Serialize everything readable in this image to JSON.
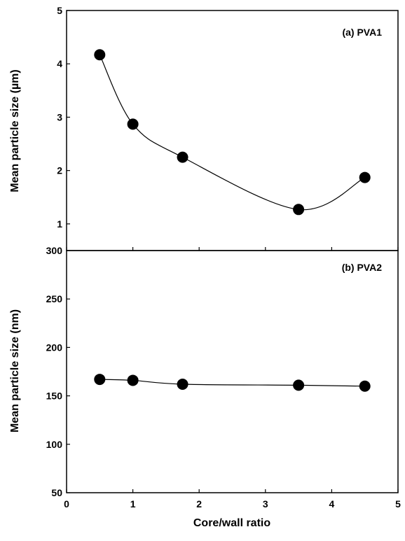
{
  "chart_data": [
    {
      "type": "line",
      "panel_label": "(a) PVA1",
      "ylabel": "Mean particle size (µm)",
      "xlabel": "",
      "ylim": [
        0.5,
        5
      ],
      "yticks": [
        1,
        2,
        3,
        4,
        5
      ],
      "xlim": [
        0,
        5
      ],
      "marker": "circle",
      "smooth": true,
      "series": [
        {
          "x": [
            0.5,
            1.0,
            1.75,
            3.5,
            4.5
          ],
          "y": [
            4.17,
            2.87,
            2.25,
            1.27,
            1.87
          ]
        }
      ]
    },
    {
      "type": "line",
      "panel_label": "(b) PVA2",
      "ylabel": "Mean particle size (nm)",
      "xlabel": "Core/wall ratio",
      "ylim": [
        50,
        300
      ],
      "yticks": [
        50,
        100,
        150,
        200,
        250,
        300
      ],
      "xlim": [
        0,
        5
      ],
      "xticks": [
        0,
        1,
        2,
        3,
        4,
        5
      ],
      "marker": "circle",
      "smooth": true,
      "series": [
        {
          "x": [
            0.5,
            1.0,
            1.75,
            3.5,
            4.5
          ],
          "y": [
            167,
            166,
            162,
            161,
            160
          ]
        }
      ]
    }
  ]
}
